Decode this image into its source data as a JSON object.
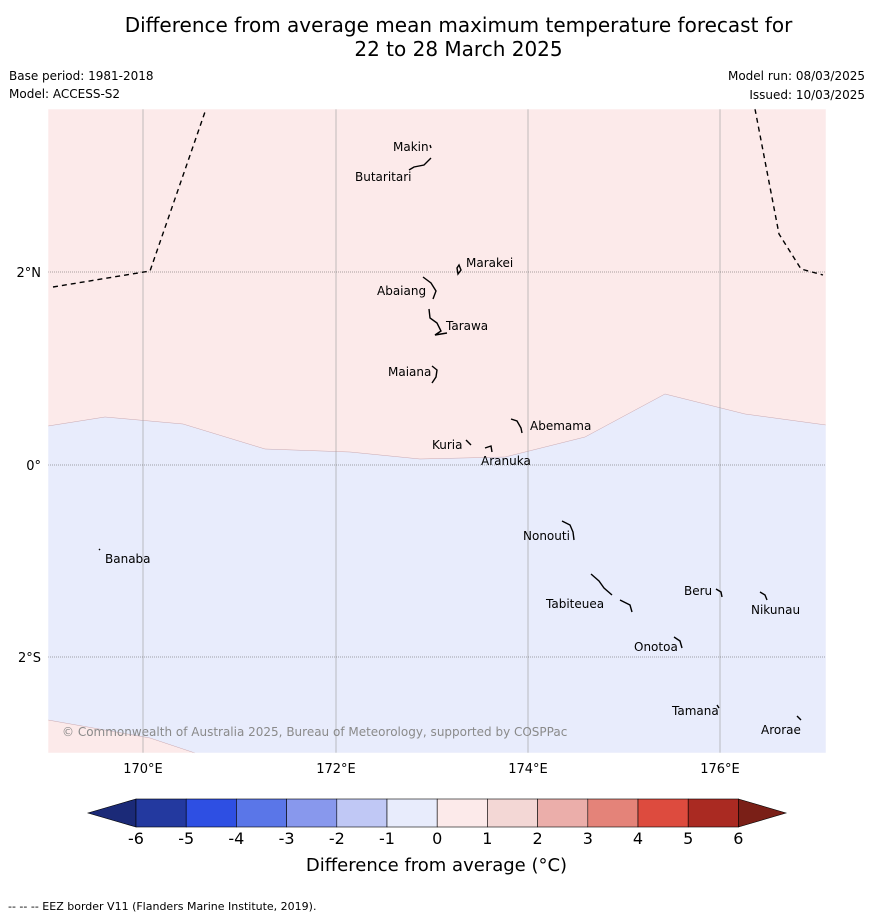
{
  "title_line1": "Difference from average mean maximum temperature forecast for",
  "title_line2": "22 to 28 March 2025",
  "base_period": "Base period: 1981-2018",
  "model": "Model: ACCESS-S2",
  "model_run": "Model run: 08/03/2025",
  "issued": "Issued: 10/03/2025",
  "copyright": "© Commonwealth of Australia 2025, Bureau of Meteorology, supported by COSPPac",
  "map": {
    "lon_ticks": [
      "170°E",
      "172°E",
      "174°E",
      "176°E"
    ],
    "lat_ticks": [
      "2°N",
      "0°",
      "2°S"
    ],
    "islands": [
      "Makin",
      "Butaritari",
      "Marakei",
      "Abaiang",
      "Tarawa",
      "Maiana",
      "Abemama",
      "Kuria",
      "Aranuka",
      "Nonouti",
      "Banaba",
      "Tabiteuea",
      "Beru",
      "Nikunau",
      "Onotoa",
      "Tamana",
      "Arorae"
    ],
    "regions": [
      {
        "category": "0 to 1",
        "color": "#fceaea"
      },
      {
        "category": "-1 to 0",
        "color": "#e8ecfc"
      }
    ]
  },
  "colorbar": {
    "labels": [
      "-6",
      "-5",
      "-4",
      "-3",
      "-2",
      "-1",
      "0",
      "1",
      "2",
      "3",
      "4",
      "5",
      "6"
    ],
    "colors": [
      "#23399f",
      "#2e4fe3",
      "#5a76e8",
      "#8898ed",
      "#c0c8f5",
      "#e8ecfc",
      "#fceaea",
      "#f3d7d5",
      "#ebaeaa",
      "#e48379",
      "#dd4b3e",
      "#aa2a22"
    ],
    "below_color": "#1b2a78",
    "above_color": "#7a1f17",
    "title": "Difference from average (°C)"
  },
  "footnote": "--  --  -- EEZ border V11 (Flanders Marine Institute, 2019)."
}
